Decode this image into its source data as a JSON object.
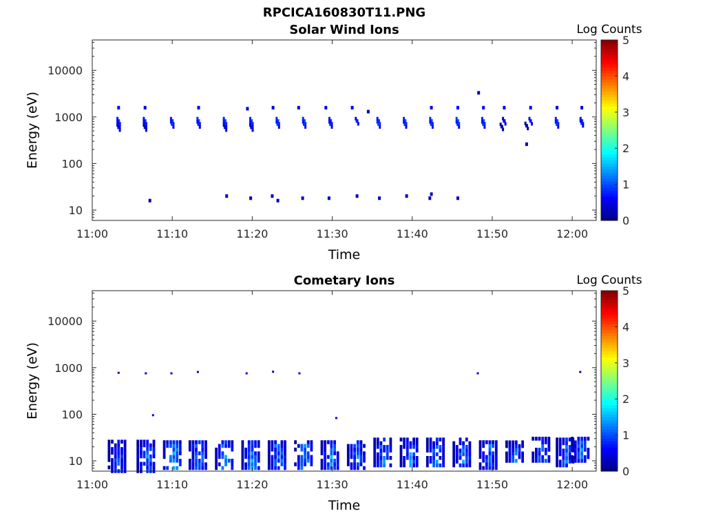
{
  "figure": {
    "title": "RPCICA160830T11.PNG"
  },
  "colors": {
    "low": "#00008f",
    "mid_blue": "#0000ff",
    "cyan": "#00ffff",
    "yellow": "#ffff00",
    "red": "#ff0000",
    "high": "#800000"
  },
  "chart_data": [
    {
      "type": "heatmap",
      "title": "Solar Wind Ions",
      "xlabel": "Time",
      "ylabel": "Energy (eV)",
      "y_scale": "log",
      "ylim": [
        6,
        45000
      ],
      "xlim": [
        "11:00",
        "12:03"
      ],
      "x_ticks": [
        "11:00",
        "11:10",
        "11:20",
        "11:30",
        "11:40",
        "11:50",
        "12:00"
      ],
      "y_ticks": [
        "10",
        "100",
        "1000",
        "10000"
      ],
      "colorbar": {
        "label": "Log Counts",
        "range": [
          0,
          5
        ],
        "ticks": [
          "0",
          "1",
          "2",
          "3",
          "4",
          "5"
        ]
      },
      "sweeps_minutes": [
        3.3,
        6.6,
        10.0,
        13.3,
        16.6,
        19.9,
        23.2,
        26.5,
        29.8,
        33.1,
        36.4,
        39.7,
        43.0,
        46.3,
        49.6,
        52.9,
        56.2,
        59.5,
        61.0
      ],
      "cells": [
        {
          "t": 3.3,
          "e": 1580,
          "v": 0.5
        },
        {
          "t": 3.3,
          "e": 820,
          "v": 0.9
        },
        {
          "t": 3.3,
          "e": 700,
          "v": 0.8
        },
        {
          "t": 3.3,
          "e": 600,
          "v": 0.6
        },
        {
          "t": 6.6,
          "e": 1580,
          "v": 0.4
        },
        {
          "t": 6.6,
          "e": 820,
          "v": 0.9
        },
        {
          "t": 6.6,
          "e": 700,
          "v": 0.8
        },
        {
          "t": 6.6,
          "e": 600,
          "v": 0.5
        },
        {
          "t": 7.2,
          "e": 16,
          "v": 0.3
        },
        {
          "t": 10.0,
          "e": 820,
          "v": 0.9
        },
        {
          "t": 10.0,
          "e": 700,
          "v": 0.9
        },
        {
          "t": 13.3,
          "e": 1580,
          "v": 0.4
        },
        {
          "t": 13.3,
          "e": 820,
          "v": 1.0
        },
        {
          "t": 13.3,
          "e": 700,
          "v": 0.8
        },
        {
          "t": 16.6,
          "e": 820,
          "v": 1.0
        },
        {
          "t": 16.6,
          "e": 700,
          "v": 0.9
        },
        {
          "t": 16.6,
          "e": 600,
          "v": 0.6
        },
        {
          "t": 16.8,
          "e": 20,
          "v": 0.3
        },
        {
          "t": 19.4,
          "e": 1500,
          "v": 0.4
        },
        {
          "t": 19.9,
          "e": 820,
          "v": 1.0
        },
        {
          "t": 19.9,
          "e": 700,
          "v": 0.9
        },
        {
          "t": 19.9,
          "e": 600,
          "v": 0.6
        },
        {
          "t": 19.8,
          "e": 18,
          "v": 0.3
        },
        {
          "t": 22.6,
          "e": 1580,
          "v": 0.4
        },
        {
          "t": 23.2,
          "e": 820,
          "v": 1.0
        },
        {
          "t": 23.2,
          "e": 700,
          "v": 0.9
        },
        {
          "t": 22.5,
          "e": 20,
          "v": 0.3
        },
        {
          "t": 23.2,
          "e": 16,
          "v": 0.3
        },
        {
          "t": 25.8,
          "e": 1580,
          "v": 0.4
        },
        {
          "t": 26.5,
          "e": 820,
          "v": 1.0
        },
        {
          "t": 26.5,
          "e": 700,
          "v": 0.9
        },
        {
          "t": 26.3,
          "e": 18,
          "v": 0.4
        },
        {
          "t": 29.2,
          "e": 1580,
          "v": 0.5
        },
        {
          "t": 29.8,
          "e": 820,
          "v": 0.9
        },
        {
          "t": 29.8,
          "e": 700,
          "v": 0.8
        },
        {
          "t": 29.6,
          "e": 18,
          "v": 0.4
        },
        {
          "t": 32.5,
          "e": 1580,
          "v": 0.5
        },
        {
          "t": 33.1,
          "e": 820,
          "v": 0.8
        },
        {
          "t": 33.1,
          "e": 20,
          "v": 0.3
        },
        {
          "t": 34.5,
          "e": 1300,
          "v": 0.3
        },
        {
          "t": 35.8,
          "e": 820,
          "v": 0.9
        },
        {
          "t": 35.8,
          "e": 700,
          "v": 1.0
        },
        {
          "t": 35.9,
          "e": 18,
          "v": 0.3
        },
        {
          "t": 39.1,
          "e": 820,
          "v": 1.0
        },
        {
          "t": 39.1,
          "e": 700,
          "v": 0.9
        },
        {
          "t": 39.3,
          "e": 20,
          "v": 0.3
        },
        {
          "t": 42.4,
          "e": 1580,
          "v": 0.4
        },
        {
          "t": 42.4,
          "e": 820,
          "v": 1.0
        },
        {
          "t": 42.4,
          "e": 700,
          "v": 0.9
        },
        {
          "t": 42.4,
          "e": 22,
          "v": 0.4
        },
        {
          "t": 42.2,
          "e": 18,
          "v": 0.3
        },
        {
          "t": 45.7,
          "e": 1580,
          "v": 0.6
        },
        {
          "t": 45.7,
          "e": 820,
          "v": 1.1
        },
        {
          "t": 45.7,
          "e": 700,
          "v": 0.9
        },
        {
          "t": 45.7,
          "e": 18,
          "v": 0.3
        },
        {
          "t": 48.3,
          "e": 3300,
          "v": 0.3
        },
        {
          "t": 48.9,
          "e": 1580,
          "v": 0.5
        },
        {
          "t": 48.9,
          "e": 820,
          "v": 1.0
        },
        {
          "t": 48.9,
          "e": 700,
          "v": 0.9
        },
        {
          "t": 51.5,
          "e": 1580,
          "v": 0.4
        },
        {
          "t": 51.5,
          "e": 820,
          "v": 0.6
        },
        {
          "t": 51.2,
          "e": 620,
          "v": 0.3
        },
        {
          "t": 54.8,
          "e": 1580,
          "v": 0.6
        },
        {
          "t": 54.8,
          "e": 820,
          "v": 0.8
        },
        {
          "t": 54.3,
          "e": 650,
          "v": 0.3
        },
        {
          "t": 54.3,
          "e": 260,
          "v": 0.3
        },
        {
          "t": 58.1,
          "e": 1580,
          "v": 0.4
        },
        {
          "t": 58.1,
          "e": 820,
          "v": 1.0
        },
        {
          "t": 58.1,
          "e": 700,
          "v": 0.9
        },
        {
          "t": 61.2,
          "e": 1580,
          "v": 0.4
        },
        {
          "t": 61.2,
          "e": 820,
          "v": 0.9
        },
        {
          "t": 61.2,
          "e": 740,
          "v": 0.8
        }
      ]
    },
    {
      "type": "heatmap",
      "title": "Cometary Ions",
      "xlabel": "Time",
      "ylabel": "Energy (eV)",
      "y_scale": "log",
      "ylim": [
        6,
        45000
      ],
      "xlim": [
        "11:00",
        "12:03"
      ],
      "x_ticks": [
        "11:00",
        "11:10",
        "11:20",
        "11:30",
        "11:40",
        "11:50",
        "12:00"
      ],
      "y_ticks": [
        "10",
        "100",
        "1000",
        "10000"
      ],
      "colorbar": {
        "label": "Log Counts",
        "range": [
          0,
          5
        ],
        "ticks": [
          "0",
          "1",
          "2",
          "3",
          "4",
          "5"
        ]
      },
      "sweeps_minutes": [
        3.3,
        6.6,
        10.0,
        13.3,
        16.6,
        19.9,
        23.2,
        26.5,
        29.8,
        33.1,
        36.4,
        39.7,
        43.0,
        46.3,
        49.6,
        52.9,
        56.2,
        59.5,
        61.0
      ],
      "isolated_cells": [
        {
          "t": 3.3,
          "e": 750,
          "v": 0.5
        },
        {
          "t": 6.7,
          "e": 730,
          "v": 0.4
        },
        {
          "t": 7.6,
          "e": 92,
          "v": 0.6
        },
        {
          "t": 9.9,
          "e": 730,
          "v": 0.4
        },
        {
          "t": 13.2,
          "e": 780,
          "v": 0.4
        },
        {
          "t": 19.3,
          "e": 730,
          "v": 0.4
        },
        {
          "t": 22.6,
          "e": 790,
          "v": 0.4
        },
        {
          "t": 25.9,
          "e": 730,
          "v": 0.4
        },
        {
          "t": 30.5,
          "e": 80,
          "v": 0.5
        },
        {
          "t": 48.2,
          "e": 730,
          "v": 0.4
        },
        {
          "t": 61.0,
          "e": 780,
          "v": 0.4
        }
      ],
      "bursts": [
        {
          "t": 3.3,
          "e_min": 6,
          "e_max": 27,
          "v_peak": 1.2
        },
        {
          "t": 6.9,
          "e_min": 6,
          "e_max": 27,
          "v_peak": 1.6
        },
        {
          "t": 10.2,
          "e_min": 7,
          "e_max": 30,
          "v_peak": 1.8
        },
        {
          "t": 13.4,
          "e_min": 7,
          "e_max": 30,
          "v_peak": 1.6
        },
        {
          "t": 16.7,
          "e_min": 7,
          "e_max": 30,
          "v_peak": 1.6
        },
        {
          "t": 20.0,
          "e_min": 7,
          "e_max": 30,
          "v_peak": 1.6
        },
        {
          "t": 23.3,
          "e_min": 7,
          "e_max": 30,
          "v_peak": 1.6
        },
        {
          "t": 26.6,
          "e_min": 7,
          "e_max": 30,
          "v_peak": 1.6
        },
        {
          "t": 29.9,
          "e_min": 7,
          "e_max": 30,
          "v_peak": 1.6
        },
        {
          "t": 33.2,
          "e_min": 7,
          "e_max": 30,
          "v_peak": 1.5
        },
        {
          "t": 36.5,
          "e_min": 8,
          "e_max": 30,
          "v_peak": 1.5
        },
        {
          "t": 39.8,
          "e_min": 8,
          "e_max": 30,
          "v_peak": 1.5
        },
        {
          "t": 43.1,
          "e_min": 8,
          "e_max": 30,
          "v_peak": 1.5
        },
        {
          "t": 46.4,
          "e_min": 8,
          "e_max": 30,
          "v_peak": 1.5
        },
        {
          "t": 49.7,
          "e_min": 7,
          "e_max": 30,
          "v_peak": 1.4
        },
        {
          "t": 53.0,
          "e_min": 10,
          "e_max": 27,
          "v_peak": 1.4
        },
        {
          "t": 56.3,
          "e_min": 10,
          "e_max": 30,
          "v_peak": 1.4
        },
        {
          "t": 59.3,
          "e_min": 8,
          "e_max": 30,
          "v_peak": 1.4
        },
        {
          "t": 61.2,
          "e_min": 10,
          "e_max": 35,
          "v_peak": 1.4
        }
      ]
    }
  ]
}
